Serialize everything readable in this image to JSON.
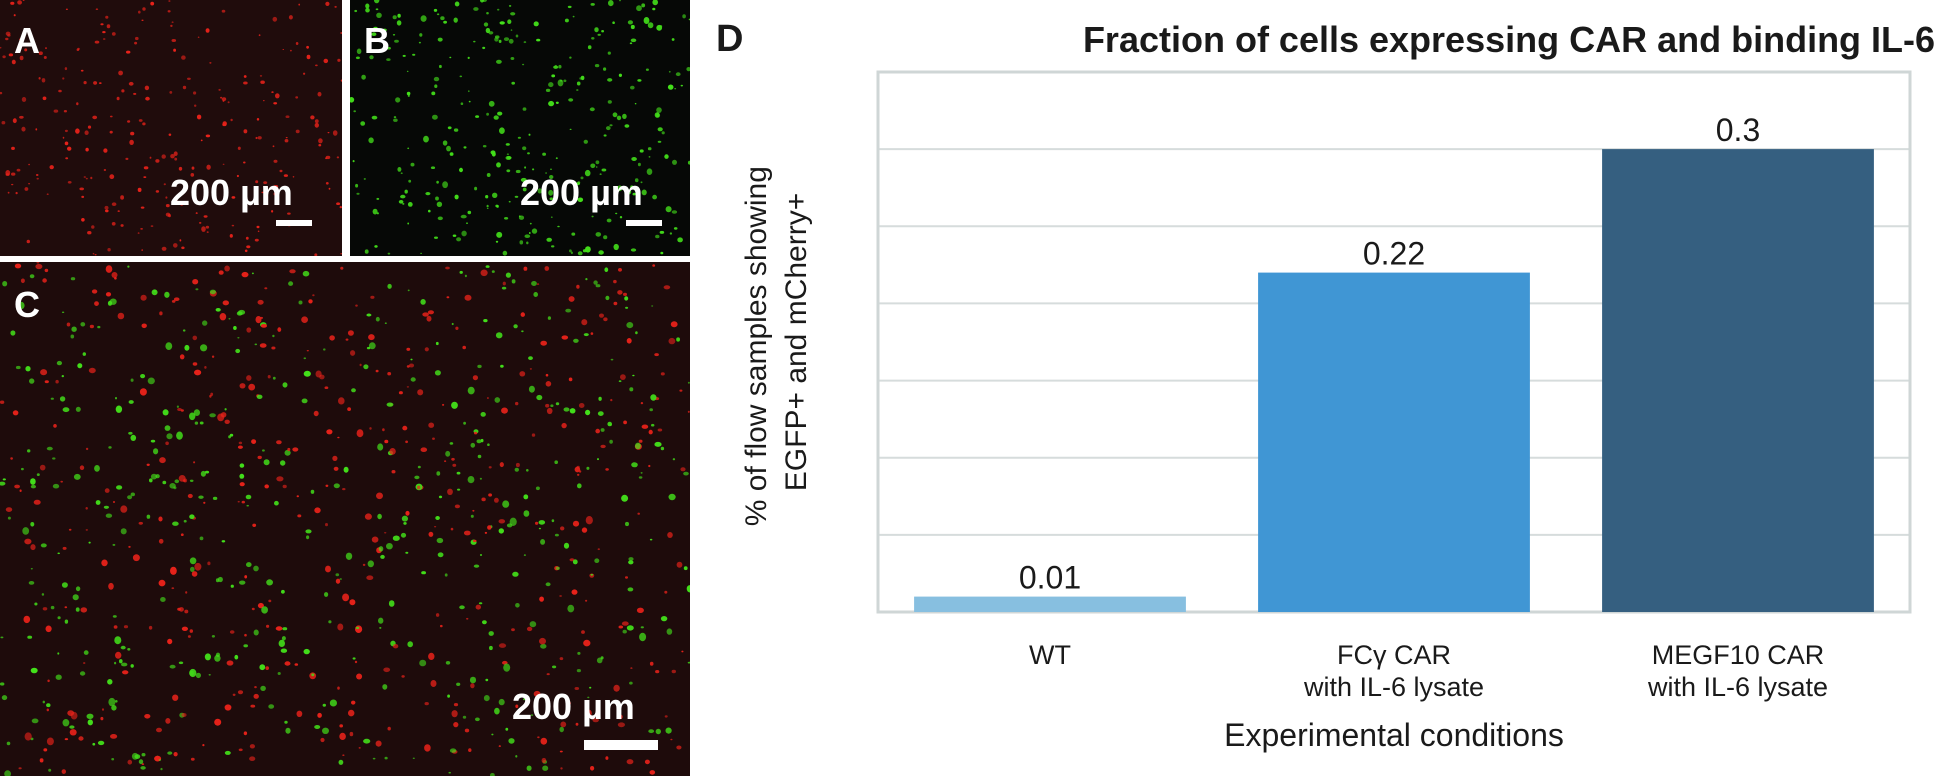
{
  "panels": {
    "a": {
      "label": "A",
      "scale": "200 µm",
      "dot_color": "#e8221a",
      "bg": "#200c0c"
    },
    "b": {
      "label": "B",
      "scale": "200 µm",
      "dot_color": "#43e01a",
      "bg": "#060806"
    },
    "c": {
      "label": "C",
      "scale": "200 µm",
      "dot_colors": [
        "#e8221a",
        "#43e01a"
      ],
      "bg": "#1e0b0b"
    },
    "d": {
      "label": "D"
    }
  },
  "chart_data": {
    "type": "bar",
    "title": "Fraction of cells expressing CAR and binding IL-6",
    "xlabel": "Experimental conditions",
    "ylabel": [
      "% of flow samples showing",
      "EGFP+ and mCherry+"
    ],
    "categories": [
      [
        "WT"
      ],
      [
        "FCγ CAR",
        "with IL-6 lysate"
      ],
      [
        "MEGF10 CAR",
        "with IL-6 lysate"
      ]
    ],
    "values": [
      0.01,
      0.22,
      0.3
    ],
    "value_labels": [
      "0.01",
      "0.22",
      "0.3"
    ],
    "colors": [
      "#87bfe0",
      "#4096d4",
      "#355f80"
    ],
    "ylim": [
      0,
      0.35
    ],
    "gridlines": [
      0.05,
      0.1,
      0.15,
      0.2,
      0.25,
      0.3
    ],
    "grid": true,
    "y_tick_labels": false
  }
}
